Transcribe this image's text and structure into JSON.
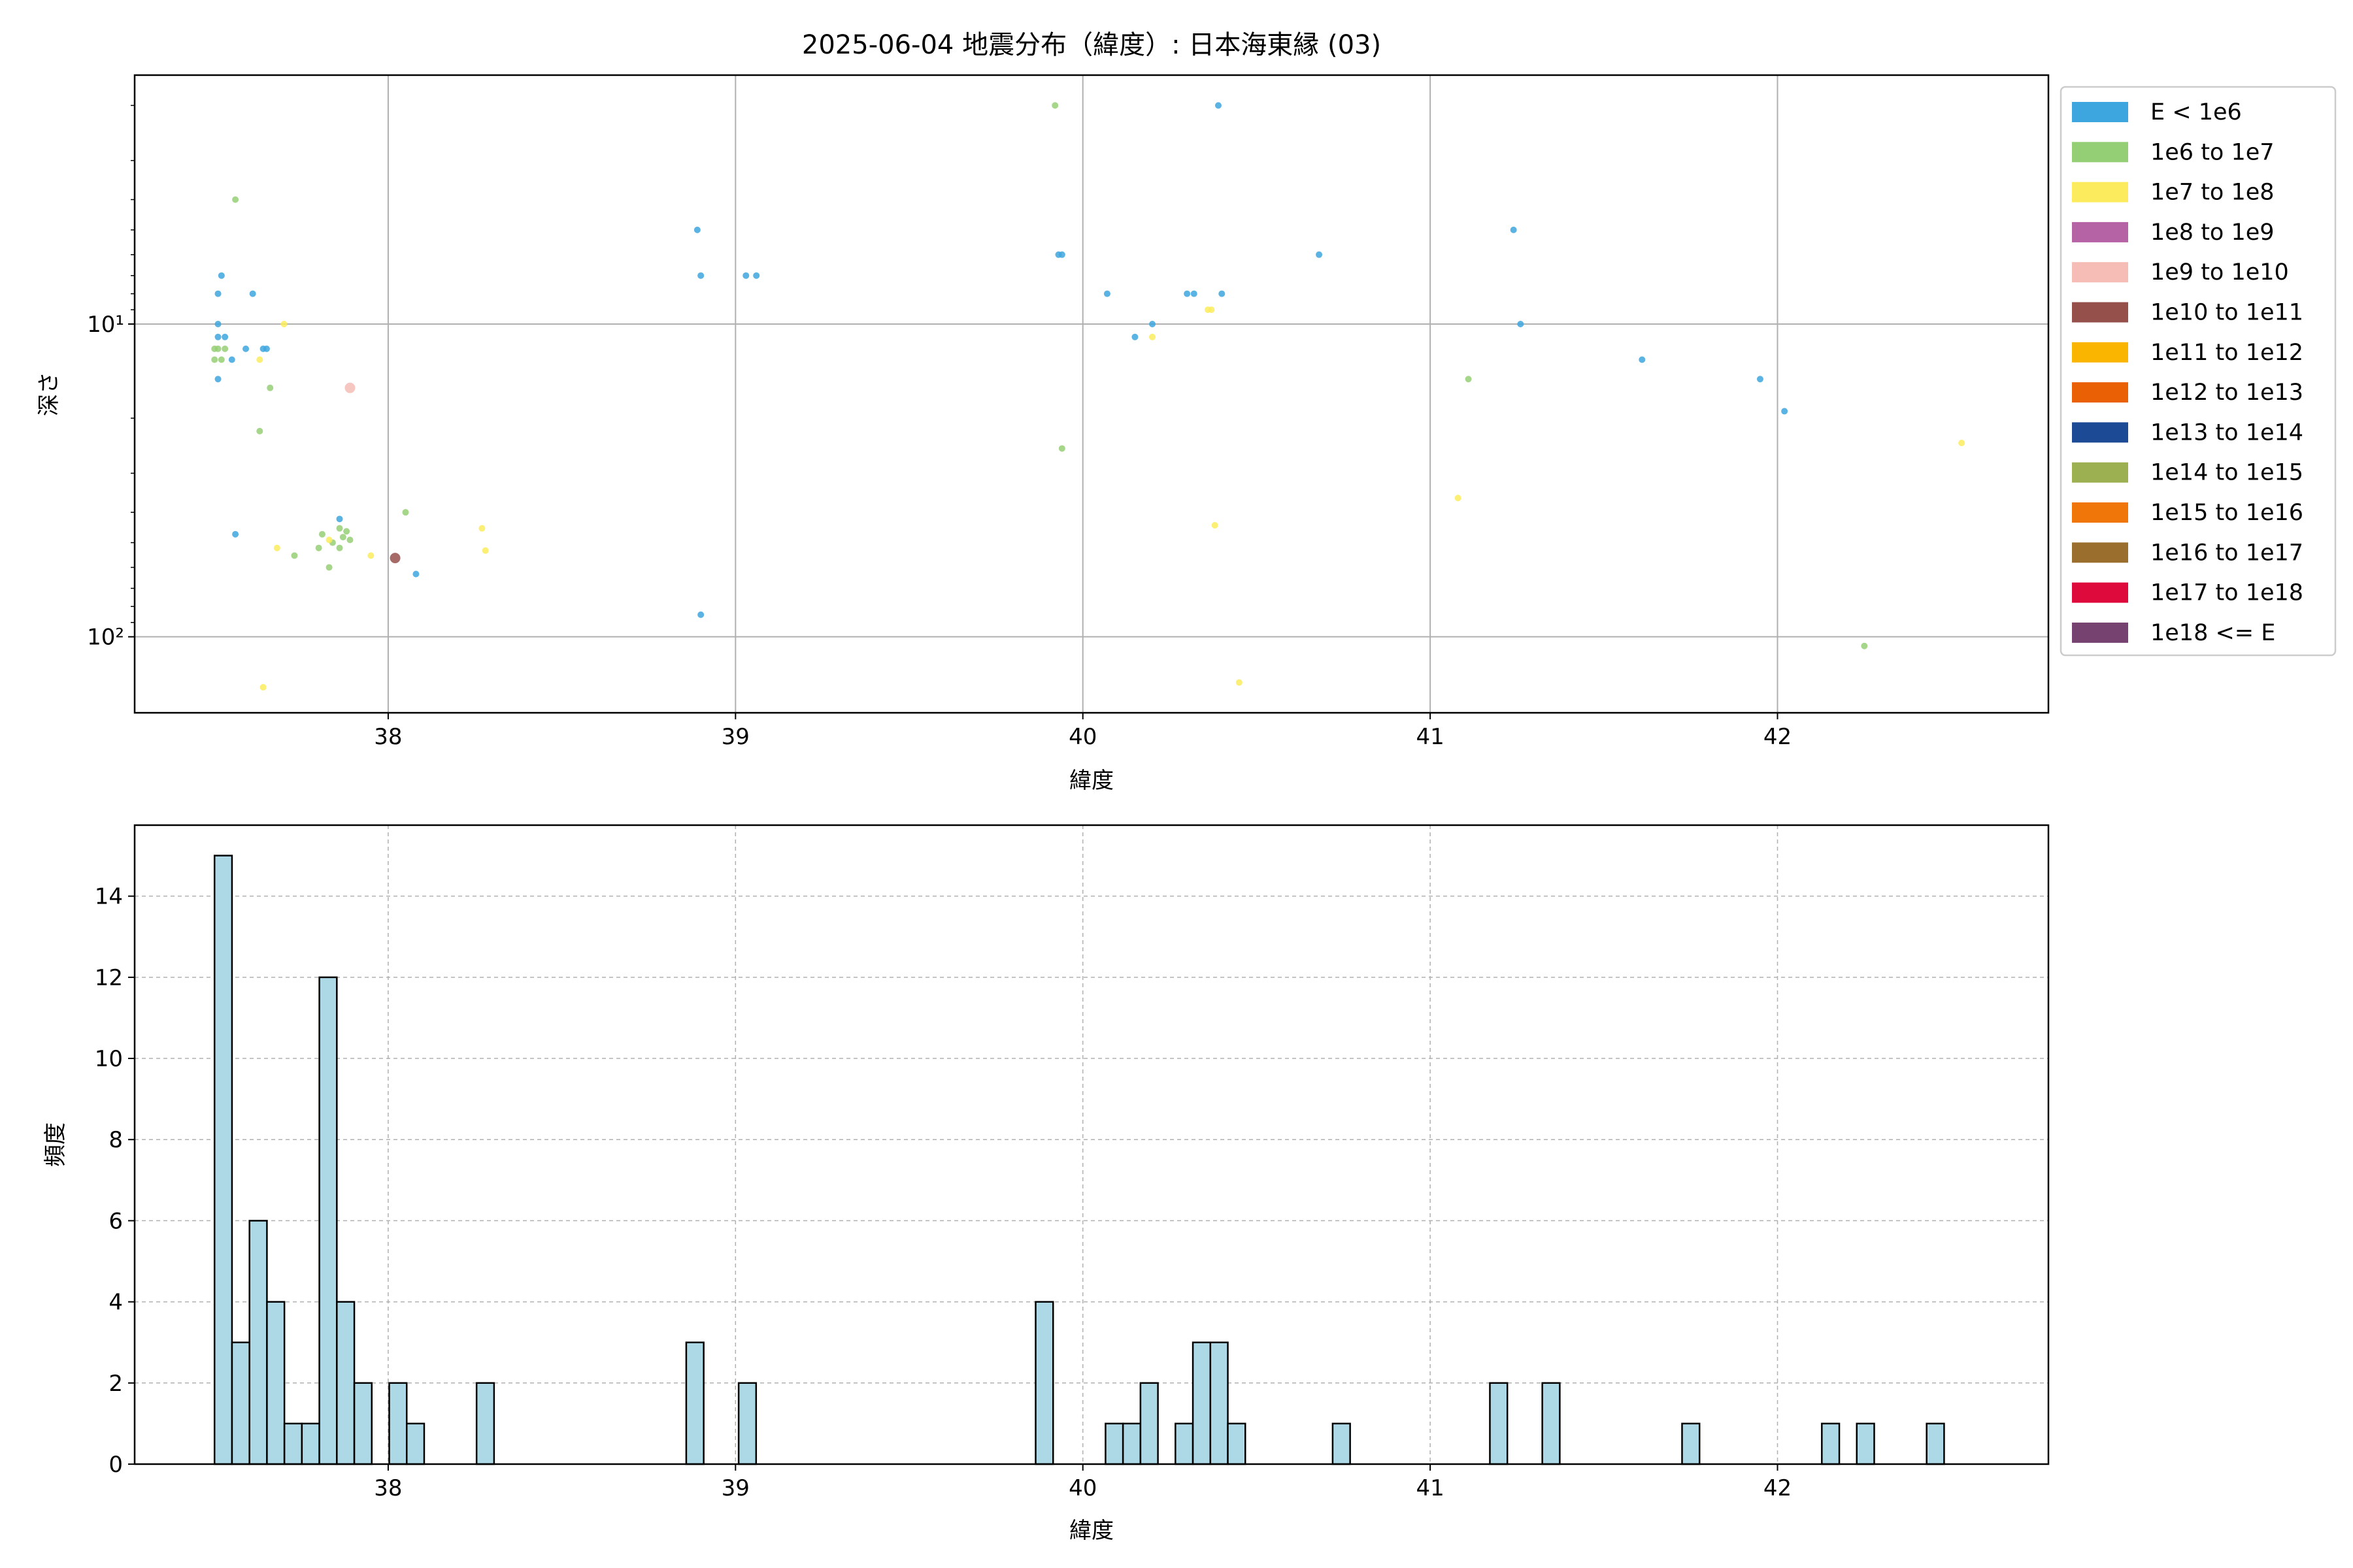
{
  "figure_title": "2025-06-04 地震分布（緯度）: 日本海東縁 (03)",
  "chart_data": [
    {
      "type": "scatter",
      "xlabel": "緯度",
      "ylabel": "深さ",
      "xlim": [
        37.27,
        42.78
      ],
      "ylim": [
        175,
        1.6
      ],
      "y_scale": "log",
      "y_inverted": true,
      "x_ticks": [
        38,
        39,
        40,
        41,
        42
      ],
      "y_ticks": [
        {
          "value": 10,
          "label": "10¹"
        },
        {
          "value": 100,
          "label": "10²"
        }
      ],
      "grid": true,
      "legend_position": "outside-right",
      "legend": [
        {
          "label": "E < 1e6",
          "color": "#3ea6de"
        },
        {
          "label": "1e6 to 1e7",
          "color": "#95cf75"
        },
        {
          "label": "1e7 to 1e8",
          "color": "#fcec5d"
        },
        {
          "label": "1e8 to 1e9",
          "color": "#b663a6"
        },
        {
          "label": "1e9 to 1e10",
          "color": "#f5bdb6"
        },
        {
          "label": "1e10 to 1e11",
          "color": "#96504c"
        },
        {
          "label": "1e11 to 1e12",
          "color": "#f9b500"
        },
        {
          "label": "1e12 to 1e13",
          "color": "#ea6005"
        },
        {
          "label": "1e13 to 1e14",
          "color": "#1c4a95"
        },
        {
          "label": "1e14 to 1e15",
          "color": "#9db051"
        },
        {
          "label": "1e15 to 1e16",
          "color": "#f0760a"
        },
        {
          "label": "1e16 to 1e17",
          "color": "#9a6e2c"
        },
        {
          "label": "1e17 to 1e18",
          "color": "#df0a3c"
        },
        {
          "label": "1e18 <= E",
          "color": "#76426f"
        }
      ],
      "series": [
        {
          "name": "E < 1e6",
          "color": "#3ea6de",
          "size": 5,
          "points": [
            [
              37.51,
              8
            ],
            [
              37.51,
              11
            ],
            [
              37.51,
              10
            ],
            [
              37.51,
              15
            ],
            [
              37.52,
              7
            ],
            [
              37.53,
              11
            ],
            [
              37.55,
              13
            ],
            [
              37.56,
              47
            ],
            [
              37.59,
              12
            ],
            [
              37.61,
              8
            ],
            [
              37.64,
              12
            ],
            [
              37.65,
              12
            ],
            [
              37.86,
              42
            ],
            [
              38.08,
              63
            ],
            [
              38.89,
              5
            ],
            [
              38.9,
              7
            ],
            [
              38.9,
              85
            ],
            [
              39.03,
              7
            ],
            [
              39.06,
              7
            ],
            [
              39.93,
              6
            ],
            [
              39.94,
              6
            ],
            [
              40.07,
              8
            ],
            [
              40.15,
              11
            ],
            [
              40.2,
              10
            ],
            [
              40.3,
              8
            ],
            [
              40.32,
              8
            ],
            [
              40.39,
              2
            ],
            [
              40.4,
              8
            ],
            [
              40.68,
              6
            ],
            [
              41.24,
              5
            ],
            [
              41.26,
              10
            ],
            [
              41.61,
              13
            ],
            [
              41.95,
              15
            ],
            [
              42.02,
              19
            ]
          ]
        },
        {
          "name": "1e6 to 1e7",
          "color": "#95cf75",
          "size": 5,
          "points": [
            [
              37.5,
              12
            ],
            [
              37.5,
              13
            ],
            [
              37.51,
              12
            ],
            [
              37.52,
              13
            ],
            [
              37.53,
              12
            ],
            [
              37.56,
              4
            ],
            [
              37.63,
              22
            ],
            [
              37.66,
              16
            ],
            [
              37.73,
              55
            ],
            [
              37.8,
              52
            ],
            [
              37.81,
              47
            ],
            [
              37.83,
              60
            ],
            [
              37.84,
              50
            ],
            [
              37.86,
              45
            ],
            [
              37.86,
              52
            ],
            [
              37.87,
              48
            ],
            [
              37.88,
              46
            ],
            [
              37.89,
              49
            ],
            [
              38.05,
              40
            ],
            [
              39.92,
              2
            ],
            [
              39.94,
              25
            ],
            [
              41.11,
              15
            ],
            [
              42.25,
              107
            ]
          ]
        },
        {
          "name": "1e7 to 1e8",
          "color": "#fcec5d",
          "size": 5,
          "points": [
            [
              37.63,
              13
            ],
            [
              37.68,
              52
            ],
            [
              37.7,
              10
            ],
            [
              37.83,
              49
            ],
            [
              37.95,
              55
            ],
            [
              38.27,
              45
            ],
            [
              38.28,
              53
            ],
            [
              37.64,
              145
            ],
            [
              40.2,
              11
            ],
            [
              40.36,
              9
            ],
            [
              40.37,
              9
            ],
            [
              40.38,
              44
            ],
            [
              40.45,
              140
            ],
            [
              41.08,
              36
            ],
            [
              42.53,
              24
            ]
          ]
        },
        {
          "name": "1e9 to 1e10",
          "color": "#f5bdb6",
          "size": 8,
          "points": [
            [
              37.89,
              16
            ]
          ]
        },
        {
          "name": "1e10 to 1e11",
          "color": "#96504c",
          "size": 8,
          "points": [
            [
              38.02,
              56
            ]
          ]
        }
      ]
    },
    {
      "type": "bar",
      "xlabel": "緯度",
      "ylabel": "頻度",
      "xlim": [
        37.27,
        42.78
      ],
      "ylim": [
        0,
        15.75
      ],
      "x_ticks": [
        38,
        39,
        40,
        41,
        42
      ],
      "y_ticks": [
        0,
        2,
        4,
        6,
        8,
        10,
        12,
        14
      ],
      "grid": true,
      "bar_color": "#add8e6",
      "bin_start": 37.5,
      "bin_width": 0.0503,
      "counts": [
        15,
        3,
        6,
        4,
        1,
        1,
        12,
        4,
        2,
        0,
        2,
        1,
        0,
        0,
        0,
        2,
        0,
        0,
        0,
        0,
        0,
        0,
        0,
        0,
        0,
        0,
        0,
        3,
        0,
        0,
        2,
        0,
        0,
        0,
        0,
        0,
        0,
        0,
        0,
        0,
        0,
        0,
        0,
        0,
        0,
        0,
        0,
        4,
        0,
        0,
        0,
        1,
        1,
        2,
        0,
        1,
        3,
        3,
        1,
        0,
        0,
        0,
        0,
        0,
        1,
        0,
        0,
        0,
        0,
        0,
        0,
        0,
        0,
        2,
        0,
        0,
        2,
        0,
        0,
        0,
        0,
        0,
        0,
        0,
        1,
        0,
        0,
        0,
        0,
        0,
        0,
        0,
        1,
        0,
        1,
        0,
        0,
        0,
        1,
        0,
        0,
        0,
        0,
        0,
        0,
        0,
        0
      ]
    }
  ]
}
